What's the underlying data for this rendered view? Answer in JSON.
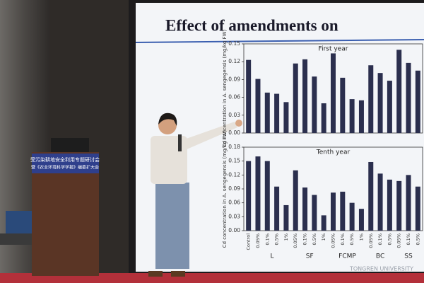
{
  "podium_banner": [
    "受污染耕地安全利用专题研讨会",
    "暨《农业环境科学学报》编委扩大会"
  ],
  "slide": {
    "title": "Effect of amendments on",
    "watermark": "TONGREN UNIVERSITY"
  },
  "chart_data": {
    "type": "bar",
    "color": "#2b2f4e",
    "categories": [
      "Control",
      "0.05%",
      "0.1%",
      "0.5%",
      "1%",
      "0.05%",
      "0.1%",
      "0.5%",
      "1%",
      "0.05%",
      "0.1%",
      "0.5%",
      "1%",
      "0.05%",
      "0.1%",
      "0.5%",
      "0.05%",
      "0.1%",
      "0.5%"
    ],
    "groups": [
      "L",
      "SF",
      "FCMP",
      "BC",
      "SS"
    ],
    "panels": [
      {
        "title": "First year",
        "y_label": "Cd concentration in A. sengegensis (mg/kg FW)",
        "values": [
          0.123,
          0.091,
          0.068,
          0.066,
          0.052,
          0.117,
          0.124,
          0.095,
          0.05,
          0.134,
          0.093,
          0.057,
          0.055,
          0.114,
          0.101,
          0.088,
          0.14,
          0.118,
          0.105
        ],
        "ylim": [
          0,
          0.15
        ],
        "yticks": [
          {
            "value": 0,
            "label": "0.00"
          },
          {
            "value": 0.03,
            "label": "0.03"
          },
          {
            "value": 0.06,
            "label": "0.06"
          },
          {
            "value": 0.09,
            "label": "0.09"
          },
          {
            "value": 0.12,
            "label": "0.12"
          },
          {
            "value": 0.15,
            "label": "0.15"
          }
        ]
      },
      {
        "title": "Tenth year",
        "y_label": "Cd concentration in A. sengegensis (mg/kg FW)",
        "values": [
          0.15,
          0.16,
          0.15,
          0.095,
          0.055,
          0.13,
          0.093,
          0.077,
          0.033,
          0.082,
          0.084,
          0.06,
          0.047,
          0.148,
          0.123,
          0.11,
          0.107,
          0.12,
          0.095
        ],
        "ylim": [
          0,
          0.18
        ],
        "yticks": [
          {
            "value": 0,
            "label": "0.00"
          },
          {
            "value": 0.03,
            "label": "0.03"
          },
          {
            "value": 0.06,
            "label": "0.06"
          },
          {
            "value": 0.09,
            "label": "0.09"
          },
          {
            "value": 0.12,
            "label": "0.12"
          },
          {
            "value": 0.15,
            "label": "0.15"
          },
          {
            "value": 0.18,
            "label": "0.18"
          }
        ]
      }
    ]
  }
}
